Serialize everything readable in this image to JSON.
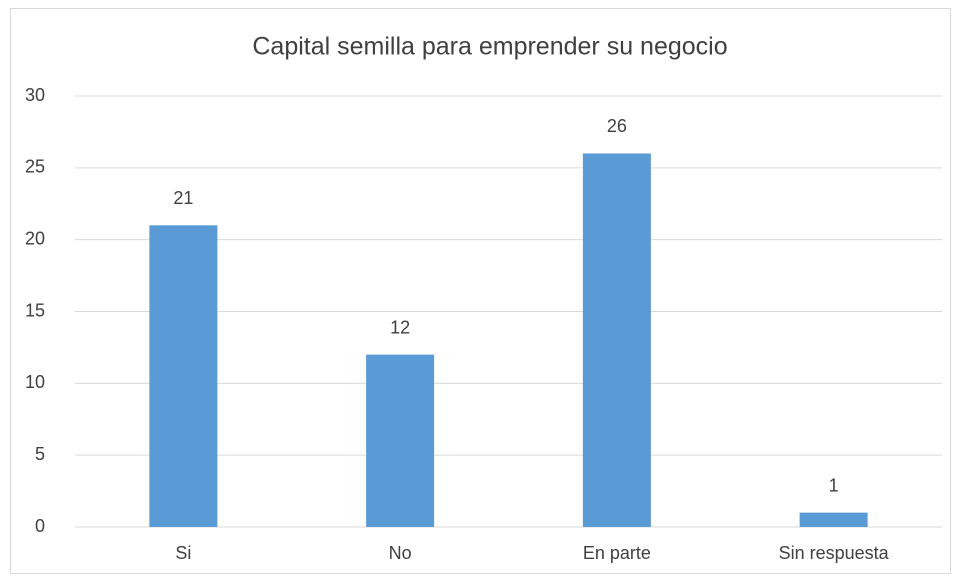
{
  "chart_data": {
    "type": "bar",
    "title": "Capital semilla para emprender su negocio",
    "categories": [
      "Si",
      "No",
      "En parte",
      "Sin respuesta"
    ],
    "values": [
      21,
      12,
      26,
      1
    ],
    "color": "#5b9bd5",
    "ylim": [
      0,
      30
    ],
    "yticks": [
      0,
      5,
      10,
      15,
      20,
      25,
      30
    ],
    "grid": true
  }
}
